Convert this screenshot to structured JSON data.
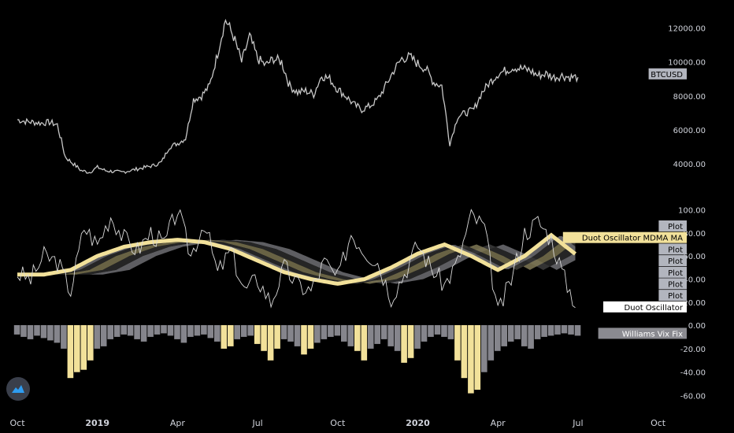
{
  "colors": {
    "background": "#000000",
    "price": "#c8c8c8",
    "oscillator": "#d9d9d9",
    "ma_yellow": "#f2e19a",
    "ribbon_dark": "#2b2b2b",
    "ribbon_grey": "#6f6f73",
    "ribbon_olive": "#7a7350",
    "vix_grey": "#85858c",
    "vix_yellow": "#f2e19a"
  },
  "x_axis": {
    "labels": [
      {
        "text": "Oct",
        "bold": false,
        "t": 0
      },
      {
        "text": "2019",
        "bold": true,
        "t": 3
      },
      {
        "text": "Apr",
        "bold": false,
        "t": 6
      },
      {
        "text": "Jul",
        "bold": false,
        "t": 9
      },
      {
        "text": "Oct",
        "bold": false,
        "t": 12
      },
      {
        "text": "2020",
        "bold": true,
        "t": 15
      },
      {
        "text": "Apr",
        "bold": false,
        "t": 18
      },
      {
        "text": "Jul",
        "bold": false,
        "t": 21
      },
      {
        "text": "Oct",
        "bold": false,
        "t": 24
      }
    ]
  },
  "chart_data": [
    {
      "type": "line",
      "title": "",
      "series": [
        {
          "name": "BTCUSD",
          "unit_note": "months since first label",
          "x": [
            0,
            0.3,
            0.6,
            0.9,
            1.2,
            1.5,
            1.8,
            2.1,
            2.4,
            2.7,
            3,
            3.3,
            3.6,
            3.9,
            4.2,
            4.5,
            4.8,
            5.1,
            5.4,
            5.7,
            6,
            6.3,
            6.6,
            6.9,
            7.2,
            7.5,
            7.8,
            8.1,
            8.4,
            8.7,
            9,
            9.3,
            9.6,
            9.9,
            10.2,
            10.5,
            10.8,
            11.1,
            11.4,
            11.7,
            12,
            12.3,
            12.6,
            12.9,
            13.2,
            13.5,
            13.8,
            14.1,
            14.4,
            14.7,
            15,
            15.3,
            15.6,
            15.9,
            16.2,
            16.5,
            16.8,
            17.1,
            17.4,
            17.7,
            18,
            18.3,
            18.6,
            18.9,
            19.2,
            19.5,
            19.8,
            20.1,
            20.4,
            20.7,
            21
          ],
          "values": [
            6600,
            6500,
            6450,
            6400,
            6450,
            6300,
            4400,
            4000,
            3600,
            3500,
            3800,
            3600,
            3550,
            3500,
            3600,
            3700,
            3800,
            3900,
            4100,
            5000,
            5200,
            5500,
            7800,
            8000,
            8600,
            10500,
            12500,
            11500,
            10000,
            11500,
            10200,
            9800,
            10200,
            10000,
            8600,
            8200,
            8300,
            8100,
            9200,
            9000,
            8400,
            8000,
            7500,
            7200,
            7400,
            7800,
            8600,
            9500,
            10200,
            10300,
            9900,
            9600,
            8800,
            8600,
            5200,
            6800,
            7000,
            7200,
            8200,
            8800,
            9300,
            9500,
            9700,
            9600,
            9500,
            9200,
            9300,
            9100,
            9200,
            9100,
            9100
          ]
        }
      ],
      "ylim": [
        2800,
        13000
      ],
      "yticks": [
        "12000.00",
        "10000.00",
        "8000.00",
        "6000.00",
        "4000.00"
      ],
      "ytick_values": [
        12000,
        10000,
        8000,
        6000,
        4000
      ],
      "last_value_tag": "BTCUSD"
    },
    {
      "type": "line",
      "title": "",
      "series": [
        {
          "name": "Duot Oscillator",
          "x": [
            0,
            0.5,
            1,
            1.5,
            2,
            2.5,
            3,
            3.5,
            4,
            4.5,
            5,
            5.5,
            6,
            6.5,
            7,
            7.5,
            8,
            8.5,
            9,
            9.5,
            10,
            10.5,
            11,
            11.5,
            12,
            12.5,
            13,
            13.5,
            14,
            14.5,
            15,
            15.5,
            16,
            16.5,
            17,
            17.5,
            18,
            18.5,
            19,
            19.5,
            20,
            20.5,
            21
          ],
          "values": [
            45,
            40,
            60,
            55,
            30,
            85,
            70,
            95,
            75,
            65,
            80,
            70,
            100,
            60,
            90,
            45,
            65,
            30,
            40,
            20,
            50,
            35,
            30,
            55,
            40,
            80,
            65,
            55,
            25,
            45,
            70,
            50,
            35,
            55,
            95,
            85,
            10,
            40,
            80,
            90,
            75,
            40,
            15
          ]
        },
        {
          "name": "Duot Oscillator MDMA MA",
          "x": [
            0,
            1,
            2,
            3,
            4,
            5,
            6,
            7,
            8,
            9,
            10,
            11,
            12,
            13,
            14,
            15,
            16,
            17,
            18,
            19,
            20,
            21
          ],
          "values": [
            44,
            44,
            48,
            60,
            68,
            72,
            74,
            72,
            66,
            56,
            46,
            40,
            36,
            40,
            50,
            62,
            70,
            60,
            48,
            60,
            78,
            60
          ]
        }
      ],
      "ylim": [
        5,
        103
      ],
      "yticks": [
        "100.00",
        "80.00",
        "60.00",
        "40.00",
        "20.00"
      ],
      "ytick_values": [
        100,
        80,
        60,
        40,
        20
      ],
      "tags": [
        {
          "text": "Plot",
          "style": "grey",
          "value": 86
        },
        {
          "text": "Duot Oscillator MDMA MA",
          "style": "yellow",
          "value": 76
        },
        {
          "text": "Plot",
          "style": "grey",
          "value": 66
        },
        {
          "text": "Plot",
          "style": "grey",
          "value": 56
        },
        {
          "text": "Plot",
          "style": "grey",
          "value": 46
        },
        {
          "text": "Plot",
          "style": "grey",
          "value": 36
        },
        {
          "text": "Plot",
          "style": "grey",
          "value": 26
        },
        {
          "text": "Duot Oscillator",
          "style": "white",
          "value": 16
        }
      ]
    },
    {
      "type": "bar",
      "title": "",
      "series": [
        {
          "name": "Williams Vix Fix",
          "x": [
            0,
            0.25,
            0.5,
            0.75,
            1,
            1.25,
            1.5,
            1.75,
            2,
            2.25,
            2.5,
            2.75,
            3,
            3.25,
            3.5,
            3.75,
            4,
            4.25,
            4.5,
            4.75,
            5,
            5.25,
            5.5,
            5.75,
            6,
            6.25,
            6.5,
            6.75,
            7,
            7.25,
            7.5,
            7.75,
            8,
            8.25,
            8.5,
            8.75,
            9,
            9.25,
            9.5,
            9.75,
            10,
            10.25,
            10.5,
            10.75,
            11,
            11.25,
            11.5,
            11.75,
            12,
            12.25,
            12.5,
            12.75,
            13,
            13.25,
            13.5,
            13.75,
            14,
            14.25,
            14.5,
            14.75,
            15,
            15.25,
            15.5,
            15.75,
            16,
            16.25,
            16.5,
            16.75,
            17,
            17.25,
            17.5,
            17.75,
            18,
            18.25,
            18.5,
            18.75,
            19,
            19.25,
            19.5,
            19.75,
            20,
            20.25,
            20.5,
            20.75,
            21
          ],
          "values": [
            -8,
            -10,
            -12,
            -9,
            -11,
            -13,
            -15,
            -20,
            -45,
            -40,
            -38,
            -30,
            -20,
            -18,
            -12,
            -10,
            -8,
            -9,
            -12,
            -14,
            -10,
            -8,
            -7,
            -9,
            -12,
            -15,
            -10,
            -9,
            -8,
            -11,
            -14,
            -20,
            -18,
            -12,
            -10,
            -9,
            -16,
            -22,
            -30,
            -20,
            -12,
            -14,
            -18,
            -25,
            -20,
            -15,
            -12,
            -10,
            -9,
            -14,
            -18,
            -22,
            -30,
            -20,
            -16,
            -12,
            -18,
            -22,
            -32,
            -28,
            -20,
            -14,
            -10,
            -8,
            -10,
            -12,
            -30,
            -45,
            -58,
            -55,
            -40,
            -30,
            -22,
            -18,
            -14,
            -12,
            -18,
            -20,
            -12,
            -10,
            -9,
            -8,
            -7,
            -8,
            -9
          ],
          "highlight": [
            false,
            false,
            false,
            false,
            false,
            false,
            false,
            false,
            true,
            true,
            true,
            true,
            false,
            false,
            false,
            false,
            false,
            false,
            false,
            false,
            false,
            false,
            false,
            false,
            false,
            false,
            false,
            false,
            false,
            false,
            false,
            true,
            true,
            false,
            false,
            false,
            true,
            true,
            true,
            true,
            false,
            false,
            false,
            true,
            true,
            false,
            false,
            false,
            false,
            false,
            false,
            true,
            true,
            false,
            false,
            false,
            false,
            false,
            true,
            true,
            false,
            false,
            false,
            false,
            false,
            false,
            true,
            true,
            true,
            true,
            false,
            false,
            false,
            false,
            false,
            false,
            false,
            false,
            false,
            false,
            false,
            false,
            false,
            false,
            false
          ]
        }
      ],
      "ylim": [
        -65,
        2
      ],
      "yticks": [
        "0.00",
        "-20.00",
        "-40.00",
        "-60.00"
      ],
      "ytick_values": [
        0,
        -20,
        -40,
        -60
      ],
      "tag": "Williams Vix Fix"
    }
  ]
}
